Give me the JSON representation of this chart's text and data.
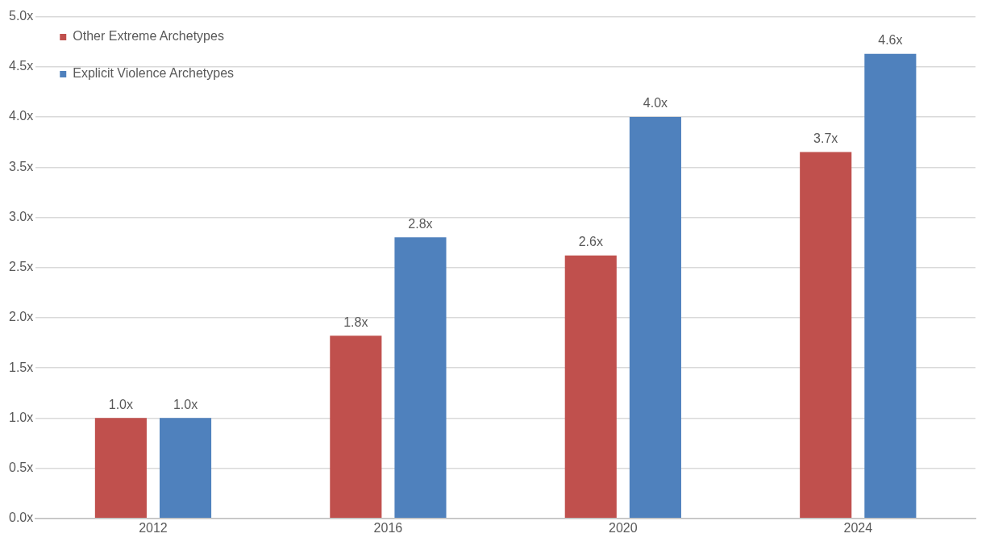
{
  "chart_data": {
    "type": "bar",
    "categories": [
      "2012",
      "2016",
      "2020",
      "2024"
    ],
    "series": [
      {
        "name": "Other Extreme Archetypes",
        "color": "#c0504d",
        "values": [
          1.0,
          1.82,
          2.62,
          3.65
        ],
        "value_labels": [
          "1.0x",
          "1.8x",
          "2.6x",
          "3.7x"
        ]
      },
      {
        "name": "Explicit Violence Archetypes",
        "color": "#4f81bd",
        "values": [
          1.0,
          2.8,
          4.0,
          4.63
        ],
        "value_labels": [
          "1.0x",
          "2.8x",
          "4.0x",
          "4.6x"
        ]
      }
    ],
    "ylim": [
      0,
      5
    ],
    "yticks": [
      {
        "value": 0,
        "label": "0.0x"
      },
      {
        "value": 0.5,
        "label": "0.5x"
      },
      {
        "value": 1,
        "label": "1.0x"
      },
      {
        "value": 1.5,
        "label": "1.5x"
      },
      {
        "value": 2,
        "label": "2.0x"
      },
      {
        "value": 2.5,
        "label": "2.5x"
      },
      {
        "value": 3,
        "label": "3.0x"
      },
      {
        "value": 3.5,
        "label": "3.5x"
      },
      {
        "value": 4,
        "label": "4.0x"
      },
      {
        "value": 4.5,
        "label": "4.5x"
      },
      {
        "value": 5,
        "label": "5.0x"
      }
    ],
    "grid": "y",
    "legend": "top left"
  }
}
